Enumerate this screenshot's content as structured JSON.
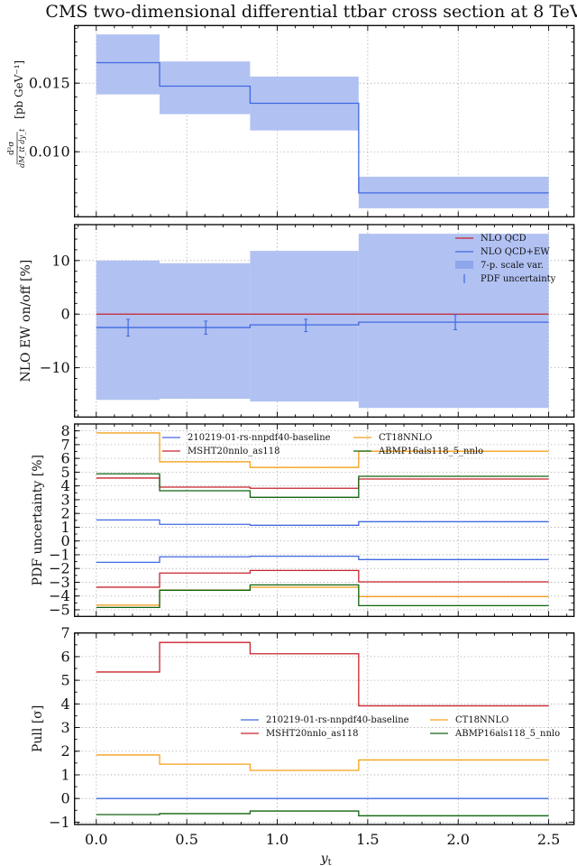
{
  "figure_title": "CMS two-dimensional differential ttbar cross section at 8 TeV",
  "colors": {
    "blue": "#4169e1",
    "red": "#c8242b",
    "orange": "#f5a11c",
    "green": "#116411",
    "band": "#b1c1f2"
  },
  "chart_data": [
    {
      "type": "line",
      "panel": "cross-section",
      "ylabel": "d²σ / dM_tt̄ dy_t [pb GeV⁻¹]",
      "ylabel_main": "d²σ",
      "ylabel_den": "dM_tt̄ dy_t",
      "ylabel_unit": "[pb GeV⁻¹]",
      "xlim": [
        -0.12,
        2.64
      ],
      "ylim": [
        0.00526,
        0.0192
      ],
      "yticks": [
        0.01,
        0.015
      ],
      "ytick_labels": [
        "0.010",
        "0.015"
      ],
      "grid": true,
      "bin_edges": [
        0.0,
        0.35,
        0.85,
        1.45,
        2.5
      ],
      "series": [
        {
          "name": "NLO QCD+EW",
          "color_key": "blue",
          "style": "step",
          "values": [
            0.01649,
            0.01478,
            0.01353,
            0.007
          ]
        },
        {
          "name": "7-p. scale var.",
          "color_key": "band",
          "style": "band",
          "upper": [
            0.01855,
            0.01658,
            0.01548,
            0.00818
          ],
          "lower": [
            0.01418,
            0.01274,
            0.01155,
            0.00588
          ]
        }
      ]
    },
    {
      "type": "line",
      "panel": "ew-ratio",
      "ylabel": "NLO EW on/off [%]",
      "xlim": [
        -0.12,
        2.64
      ],
      "ylim": [
        -19.2,
        16.7
      ],
      "yticks": [
        -10,
        0,
        10
      ],
      "ytick_labels": [
        "−10",
        "0",
        "10"
      ],
      "grid": true,
      "legend_position": "top-right",
      "bin_edges": [
        0.0,
        0.35,
        0.85,
        1.45,
        2.5
      ],
      "series": [
        {
          "name": "NLO QCD",
          "color_key": "red",
          "style": "step",
          "values": [
            0,
            0,
            0,
            0
          ]
        },
        {
          "name": "NLO QCD+EW",
          "color_key": "blue",
          "style": "step",
          "values": [
            -2.5,
            -2.5,
            -2.0,
            -1.5
          ]
        },
        {
          "name": "7-p. scale var.",
          "color_key": "band",
          "style": "band",
          "upper": [
            10.0,
            9.5,
            11.8,
            15.0
          ],
          "lower": [
            -16.0,
            -15.8,
            -16.3,
            -17.5
          ]
        },
        {
          "name": "PDF uncertainty",
          "color_key": "blue",
          "style": "errorbar",
          "x": [
            0.176,
            0.605,
            1.158,
            1.984
          ],
          "upper": [
            -0.96,
            -1.3,
            -0.96,
            -0.1
          ],
          "lower": [
            -4.1,
            -3.76,
            -3.26,
            -2.9
          ]
        }
      ]
    },
    {
      "type": "line",
      "panel": "pdf-uncertainty",
      "ylabel": "PDF uncertainty [%]",
      "xlim": [
        -0.12,
        2.64
      ],
      "ylim": [
        -5.48,
        8.5
      ],
      "yticks": [
        -5,
        -4,
        -3,
        -2,
        -1,
        0,
        1,
        2,
        3,
        4,
        5,
        6,
        7,
        8
      ],
      "ytick_labels": [
        "−5",
        "−4",
        "−3",
        "−2",
        "−1",
        "0",
        "1",
        "2",
        "3",
        "4",
        "5",
        "6",
        "7",
        "8"
      ],
      "grid": true,
      "legend_position": "top-center",
      "bin_edges": [
        0.0,
        0.35,
        0.85,
        1.45,
        2.5
      ],
      "series": [
        {
          "name": "210219-01-rs-nnpdf40-baseline",
          "color_key": "blue",
          "style": "step-pair",
          "upper": [
            1.53,
            1.21,
            1.14,
            1.4
          ],
          "lower": [
            -1.55,
            -1.15,
            -1.11,
            -1.35
          ]
        },
        {
          "name": "MSHT20nnlo_as118",
          "color_key": "red",
          "style": "step-pair",
          "upper": [
            4.57,
            3.91,
            3.83,
            4.5
          ],
          "lower": [
            -3.36,
            -2.33,
            -2.14,
            -2.97
          ]
        },
        {
          "name": "CT18NNLO",
          "color_key": "orange",
          "style": "step-pair",
          "upper": [
            7.85,
            5.75,
            5.34,
            6.52
          ],
          "lower": [
            -4.66,
            -3.56,
            -3.36,
            -4.04
          ]
        },
        {
          "name": "ABMP16als118_5_nnlo",
          "color_key": "green",
          "style": "step-pair",
          "upper": [
            4.88,
            3.65,
            3.17,
            4.7
          ],
          "lower": [
            -4.83,
            -3.58,
            -3.19,
            -4.7
          ]
        }
      ]
    },
    {
      "type": "line",
      "panel": "pull",
      "ylabel": "Pull [σ]",
      "xlabel": "y_t",
      "xlabel_main": "y",
      "xlabel_sub": "t",
      "xlim": [
        -0.12,
        2.64
      ],
      "ylim": [
        -1.1,
        7.0
      ],
      "yticks": [
        -1,
        0,
        1,
        2,
        3,
        4,
        5,
        6,
        7
      ],
      "ytick_labels": [
        "−1",
        "0",
        "1",
        "2",
        "3",
        "4",
        "5",
        "6",
        "7"
      ],
      "xticks": [
        0.0,
        0.5,
        1.0,
        1.5,
        2.0,
        2.5
      ],
      "xtick_labels": [
        "0.0",
        "0.5",
        "1.0",
        "1.5",
        "2.0",
        "2.5"
      ],
      "grid": true,
      "legend_position": "center-right",
      "bin_edges": [
        0.0,
        0.35,
        0.85,
        1.45,
        2.5
      ],
      "series": [
        {
          "name": "210219-01-rs-nnpdf40-baseline",
          "color_key": "blue",
          "style": "step",
          "values": [
            0,
            0,
            0,
            0
          ]
        },
        {
          "name": "MSHT20nnlo_as118",
          "color_key": "red",
          "style": "step",
          "values": [
            5.35,
            6.6,
            6.12,
            3.92
          ]
        },
        {
          "name": "CT18NNLO",
          "color_key": "orange",
          "style": "step",
          "values": [
            1.84,
            1.45,
            1.19,
            1.63
          ]
        },
        {
          "name": "ABMP16als118_5_nnlo",
          "color_key": "green",
          "style": "step",
          "values": [
            -0.68,
            -0.64,
            -0.53,
            -0.73
          ]
        }
      ]
    }
  ]
}
